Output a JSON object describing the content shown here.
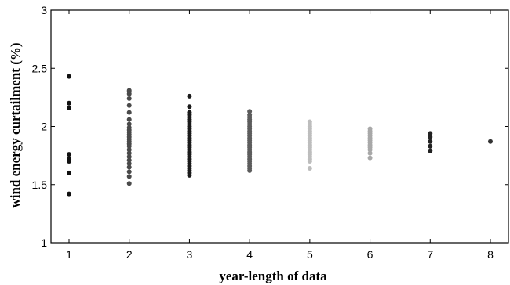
{
  "chart_data": {
    "type": "scatter",
    "title": "",
    "xlabel": "year-length of data",
    "ylabel": "wind energy curtailment (%)",
    "xlim": [
      0.7,
      8.3
    ],
    "ylim": [
      1,
      3
    ],
    "grid": false,
    "x_ticks": [
      "1",
      "2",
      "3",
      "4",
      "5",
      "6",
      "7",
      "8"
    ],
    "y_ticks": [
      "1",
      "1.5",
      "2",
      "2.5",
      "3"
    ],
    "series": [
      {
        "x": 1,
        "color": "#111111",
        "values": [
          2.43,
          2.2,
          2.16,
          1.76,
          1.72,
          1.7,
          1.6,
          1.42
        ]
      },
      {
        "x": 2,
        "color": "#4a4a4a",
        "values": [
          2.31,
          2.3,
          2.28,
          2.24,
          2.18,
          2.12,
          2.06,
          2.02,
          1.99,
          1.97,
          1.95,
          1.93,
          1.91,
          1.89,
          1.87,
          1.85,
          1.83,
          1.8,
          1.77,
          1.74,
          1.71,
          1.68,
          1.65,
          1.61,
          1.57,
          1.51
        ]
      },
      {
        "x": 3,
        "color": "#1a1a1a",
        "values": [
          2.26,
          2.17,
          2.12,
          2.1,
          2.08,
          2.06,
          2.04,
          2.02,
          2.0,
          1.98,
          1.96,
          1.94,
          1.92,
          1.9,
          1.88,
          1.86,
          1.84,
          1.82,
          1.8,
          1.78,
          1.76,
          1.74,
          1.72,
          1.7,
          1.68,
          1.66,
          1.64,
          1.62,
          1.6,
          1.58
        ]
      },
      {
        "x": 4,
        "color": "#5c5c5c",
        "values": [
          2.13,
          2.1,
          2.08,
          2.06,
          2.04,
          2.02,
          2.0,
          1.98,
          1.96,
          1.94,
          1.92,
          1.9,
          1.88,
          1.86,
          1.84,
          1.82,
          1.8,
          1.78,
          1.76,
          1.74,
          1.72,
          1.7,
          1.68,
          1.66,
          1.64,
          1.62
        ]
      },
      {
        "x": 5,
        "color": "#bdbdbd",
        "values": [
          2.04,
          2.02,
          2.0,
          1.98,
          1.96,
          1.94,
          1.92,
          1.9,
          1.88,
          1.86,
          1.84,
          1.82,
          1.8,
          1.78,
          1.76,
          1.74,
          1.72,
          1.7,
          1.64
        ]
      },
      {
        "x": 6,
        "color": "#a8a8a8",
        "values": [
          1.98,
          1.96,
          1.94,
          1.92,
          1.9,
          1.88,
          1.86,
          1.84,
          1.82,
          1.8,
          1.77,
          1.73
        ]
      },
      {
        "x": 7,
        "color": "#222222",
        "values": [
          1.94,
          1.91,
          1.87,
          1.83,
          1.79
        ]
      },
      {
        "x": 8,
        "color": "#333333",
        "values": [
          1.87
        ]
      }
    ]
  }
}
